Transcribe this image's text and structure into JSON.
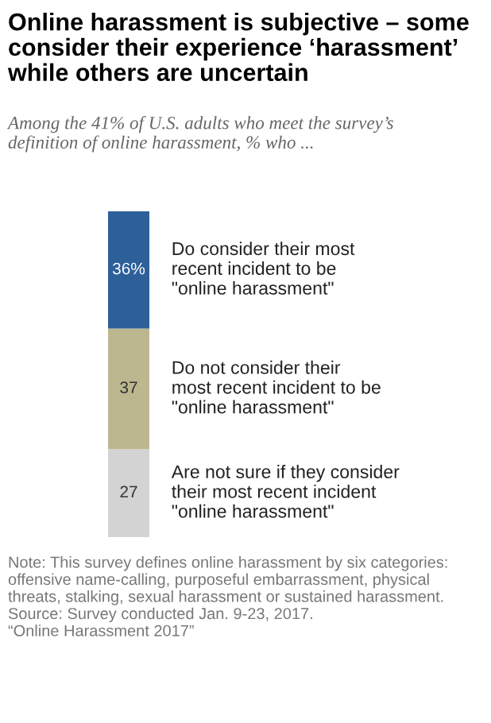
{
  "chart_data": {
    "type": "bar",
    "stacked": true,
    "title": "Online harassment is subjective – some\nconsider their experience ‘harassment’\nwhile others are uncertain",
    "subtitle": "Among the 41% of U.S. adults who meet the survey’s\ndefinition of online harassment, % who ...",
    "categories": [
      null
    ],
    "ylim": [
      0,
      100
    ],
    "grid": false,
    "legend": false,
    "series": [
      {
        "name": "Are not sure if they consider\ntheir most recent incident\n\"online harassment\"",
        "color": "#d3d3d3",
        "values": [
          27
        ],
        "value_labels": [
          "27"
        ]
      },
      {
        "name": "Do not consider their\nmost recent incident to be\n\"online harassment\"",
        "color": "#bcb78f",
        "values": [
          37
        ],
        "value_labels": [
          "37"
        ]
      },
      {
        "name": "Do consider their most\nrecent incident to be\n\"online harassment\"",
        "color": "#2d5f99",
        "values": [
          36
        ],
        "value_labels": [
          "36%"
        ]
      }
    ],
    "annotations": [
      "Note: This survey defines online harassment by six categories:\noffensive name-calling, purposeful embarrassment, physical\nthreats, stalking, sexual harassment or sustained harassment.\nSource: Survey conducted Jan. 9-23, 2017.\n“Online Harassment 2017”"
    ]
  }
}
